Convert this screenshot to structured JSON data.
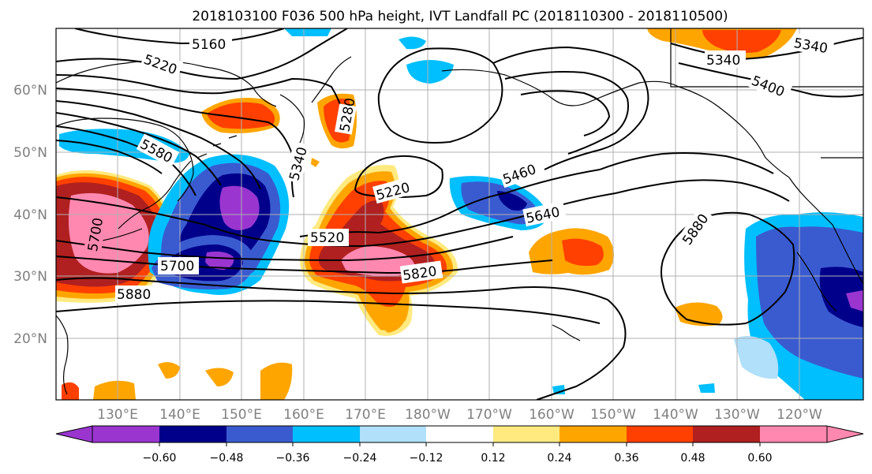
{
  "title": "2018103100 F036 500 hPa height, IVT Landfall PC (2018110300 - 2018110500)",
  "map": {
    "lat_labels": [
      "60°N",
      "50°N",
      "40°N",
      "30°N",
      "20°N"
    ],
    "lon_labels": [
      "130°E",
      "140°E",
      "150°E",
      "160°E",
      "170°E",
      "180°W",
      "170°W",
      "160°W",
      "150°W",
      "140°W",
      "130°W",
      "120°W"
    ],
    "contour_labels": [
      "5160",
      "5220",
      "5580",
      "5280",
      "5340",
      "5220",
      "5460",
      "5520",
      "5640",
      "5700",
      "5820",
      "5880",
      "5880",
      "5400",
      "5340",
      "5340",
      "5700"
    ]
  },
  "colorbar": {
    "tick_labels": [
      "−0.60",
      "−0.48",
      "−0.36",
      "−0.24",
      "−0.12",
      "0.12",
      "0.24",
      "0.36",
      "0.48",
      "0.60"
    ],
    "colors": [
      "#9a35d0",
      "#00008b",
      "#3a5bd0",
      "#00bfff",
      "#b0e0fa",
      "#ffffff",
      "#ffea80",
      "#ffa500",
      "#ff4000",
      "#b02020",
      "#ff88b0"
    ]
  },
  "colors": {
    "grid": "#b0b0b0",
    "contour": "#000000",
    "axis_labels": "#808080"
  }
}
